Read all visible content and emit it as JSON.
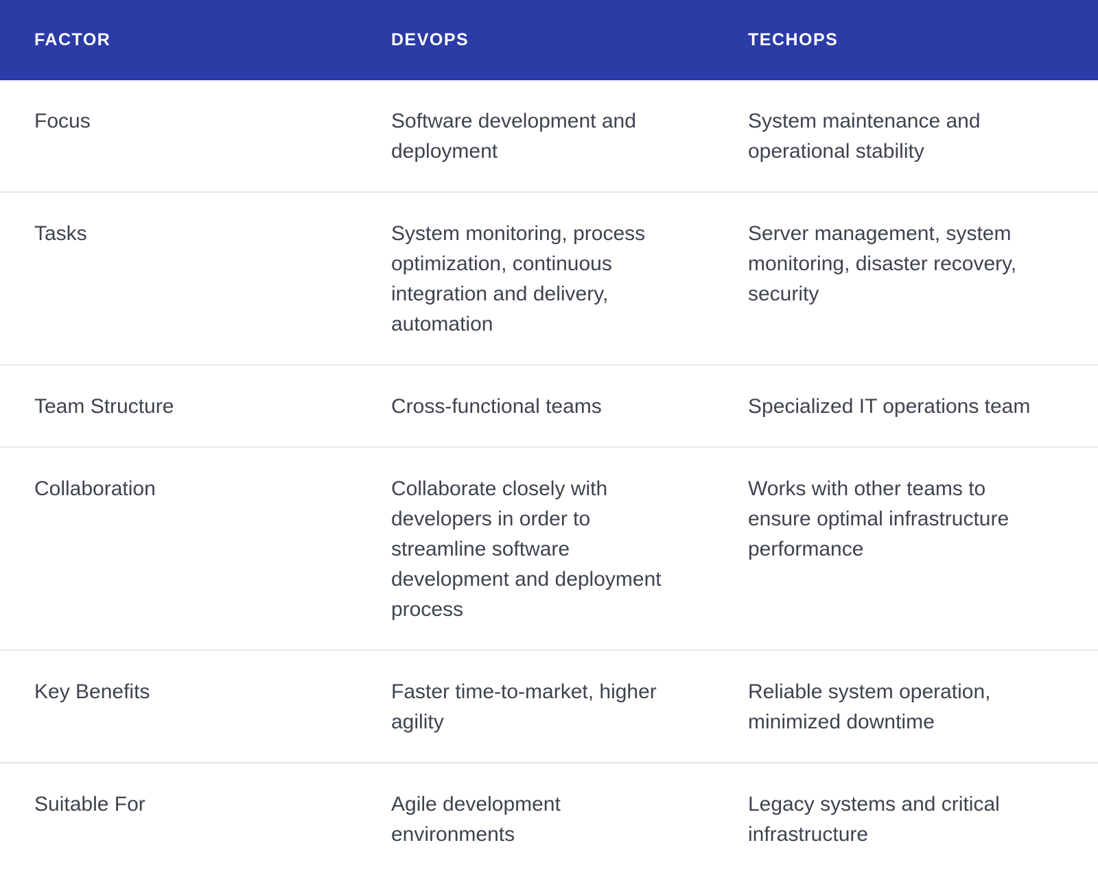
{
  "colors": {
    "header_background": "#2b3ca6",
    "header_text": "#ffffff",
    "body_text": "#3e434e",
    "divider": "#e4e6ea",
    "page_background": "#ffffff"
  },
  "table": {
    "header": {
      "factor": "FACTOR",
      "devops": "DEVOPS",
      "techops": "TECHOPS"
    },
    "rows": [
      {
        "factor": "Focus",
        "devops": "Software development and deployment",
        "techops": "System maintenance and operational stability"
      },
      {
        "factor": "Tasks",
        "devops": "System monitoring, process optimization, continuous integration and delivery, automation",
        "techops": "Server management, system monitoring, disaster recovery, security"
      },
      {
        "factor": "Team Structure",
        "devops": "Cross-functional teams",
        "techops": "Specialized IT operations team"
      },
      {
        "factor": "Collaboration",
        "devops": "Collaborate closely with developers in order to streamline software development and deployment process",
        "techops": "Works with other teams to ensure optimal infrastructure performance"
      },
      {
        "factor": "Key Benefits",
        "devops": "Faster time-to-market, higher agility",
        "techops": "Reliable system operation, minimized downtime"
      },
      {
        "factor": "Suitable For",
        "devops": "Agile development environments",
        "techops": "Legacy systems and critical infrastructure"
      }
    ]
  }
}
